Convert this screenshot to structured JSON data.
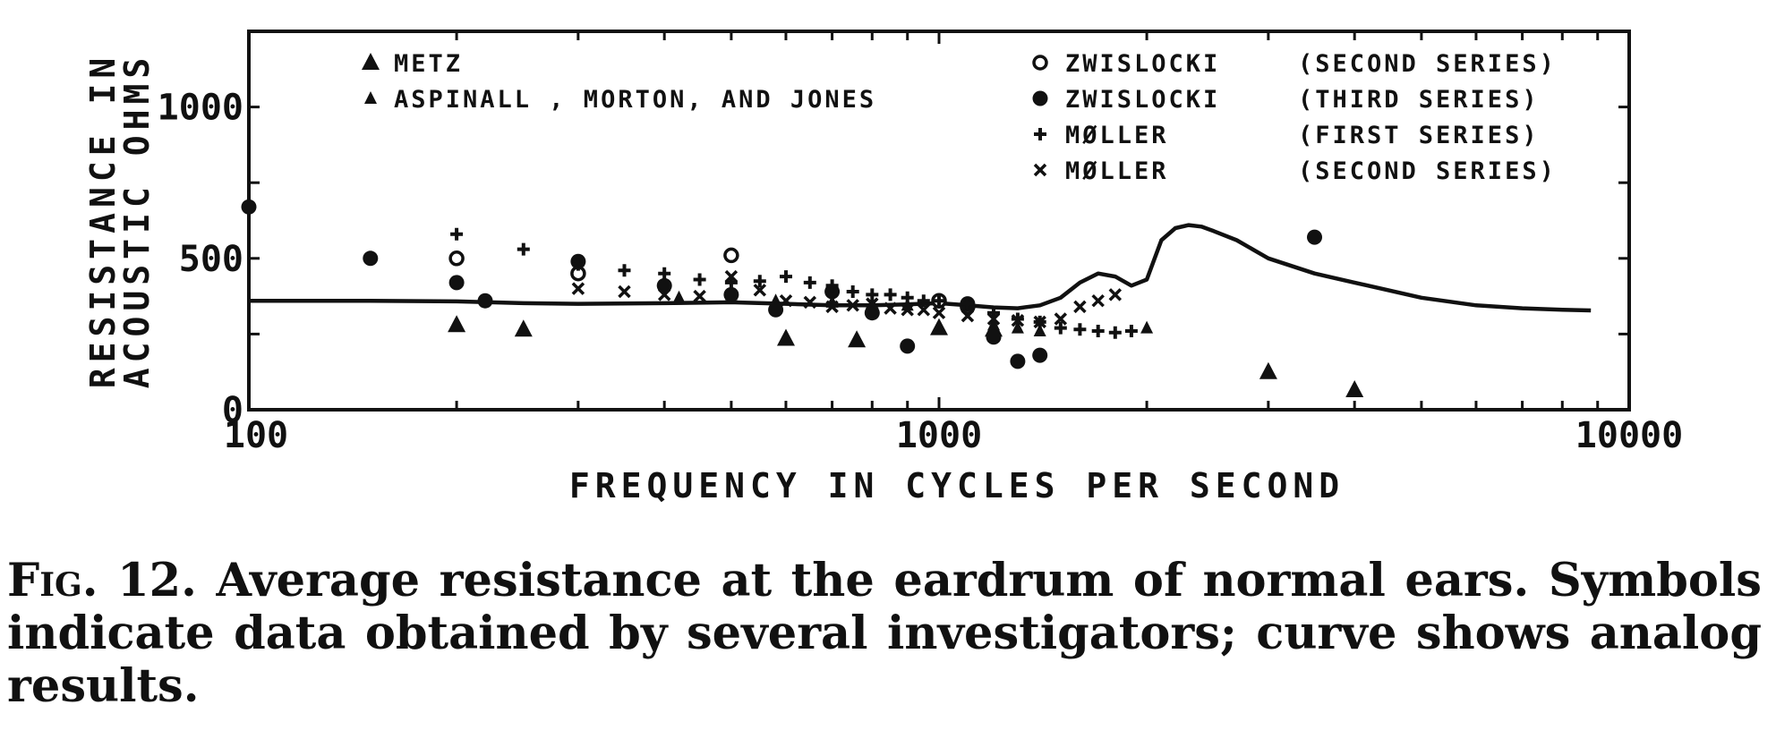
{
  "chart_data": {
    "type": "scatter",
    "title": "",
    "xlabel": "FREQUENCY IN CYCLES PER SECOND",
    "ylabel_line1": "RESISTANCE IN",
    "ylabel_line2": "ACOUSTIC OHMS",
    "x_scale": "log",
    "xlim": [
      100,
      10000
    ],
    "ylim": [
      0,
      1250
    ],
    "x_ticks": [
      100,
      1000,
      10000
    ],
    "x_tick_labels": [
      "100",
      "1000",
      "10000"
    ],
    "y_ticks": [
      0,
      500,
      1000
    ],
    "y_tick_labels": [
      "0",
      "500",
      "1000"
    ],
    "grid": false,
    "legend_left": [
      {
        "symbol": "triangle",
        "label": "METZ"
      },
      {
        "symbol": "triangle-small",
        "label": "ASPINALL , MORTON, AND  JONES"
      }
    ],
    "legend_right": [
      {
        "symbol": "circle-open",
        "label": "ZWISLOCKI",
        "series": "(SECOND  SERIES)"
      },
      {
        "symbol": "circle",
        "label": "ZWISLOCKI",
        "series": "(THIRD  SERIES)"
      },
      {
        "symbol": "plus",
        "label": "MØLLER",
        "series": "(FIRST  SERIES)"
      },
      {
        "symbol": "x",
        "label": "MØLLER",
        "series": "(SECOND  SERIES)"
      }
    ],
    "curve": {
      "name": "analog results",
      "x": [
        100,
        150,
        200,
        250,
        300,
        400,
        500,
        600,
        700,
        800,
        900,
        1000,
        1100,
        1200,
        1300,
        1400,
        1500,
        1600,
        1700,
        1800,
        1900,
        2000,
        2100,
        2200,
        2300,
        2400,
        2500,
        2700,
        3000,
        3500,
        4000,
        5000,
        6000,
        7000,
        8000,
        8800
      ],
      "y": [
        360,
        360,
        358,
        352,
        350,
        352,
        355,
        350,
        345,
        345,
        348,
        352,
        345,
        338,
        335,
        345,
        370,
        420,
        450,
        440,
        410,
        430,
        560,
        600,
        610,
        605,
        590,
        560,
        500,
        450,
        420,
        370,
        345,
        335,
        330,
        328
      ]
    },
    "series": [
      {
        "name": "METZ",
        "symbol": "triangle",
        "x": [
          200,
          250,
          600,
          760,
          1000,
          1200,
          3000,
          4000
        ],
        "y": [
          280,
          265,
          235,
          230,
          270,
          265,
          125,
          65
        ]
      },
      {
        "name": "ASPINALL , MORTON, AND  JONES",
        "symbol": "triangle-small",
        "x": [
          420,
          500,
          580,
          700,
          800,
          900,
          1200,
          1300,
          1400,
          2000
        ],
        "y": [
          370,
          380,
          360,
          355,
          350,
          345,
          280,
          270,
          260,
          270
        ]
      },
      {
        "name": "ZWISLOCKI (SECOND SERIES)",
        "symbol": "circle-open",
        "x": [
          200,
          300,
          500,
          1000,
          1100
        ],
        "y": [
          500,
          450,
          510,
          360,
          340
        ]
      },
      {
        "name": "ZWISLOCKI (THIRD SERIES)",
        "symbol": "circle",
        "x": [
          100,
          150,
          200,
          220,
          300,
          400,
          500,
          580,
          700,
          800,
          900,
          1100,
          1200,
          1300,
          1400,
          3500
        ],
        "y": [
          670,
          500,
          420,
          360,
          490,
          410,
          380,
          330,
          390,
          320,
          210,
          350,
          240,
          160,
          180,
          570
        ]
      },
      {
        "name": "MØLLER (FIRST SERIES)",
        "symbol": "plus",
        "x": [
          200,
          250,
          300,
          350,
          400,
          450,
          500,
          550,
          600,
          650,
          700,
          750,
          800,
          850,
          900,
          950,
          1000,
          1100,
          1200,
          1300,
          1400,
          1500,
          1600,
          1700,
          1800,
          1900
        ],
        "y": [
          580,
          530,
          480,
          460,
          450,
          430,
          420,
          425,
          440,
          420,
          410,
          390,
          380,
          380,
          370,
          360,
          360,
          350,
          320,
          300,
          290,
          270,
          265,
          260,
          255,
          260
        ]
      },
      {
        "name": "MØLLER (SECOND SERIES)",
        "symbol": "x",
        "x": [
          300,
          350,
          400,
          450,
          500,
          550,
          600,
          650,
          700,
          750,
          800,
          850,
          900,
          950,
          1000,
          1100,
          1200,
          1300,
          1400,
          1500,
          1600,
          1700,
          1800
        ],
        "y": [
          400,
          390,
          380,
          375,
          440,
          395,
          360,
          355,
          340,
          345,
          350,
          335,
          330,
          330,
          320,
          310,
          300,
          295,
          290,
          300,
          340,
          360,
          380
        ]
      }
    ]
  },
  "caption": {
    "label": "Fig. 12.",
    "text": "Average resistance at the eardrum of normal ears. Symbols indicate data obtained by several investigators; curve shows analog results."
  }
}
